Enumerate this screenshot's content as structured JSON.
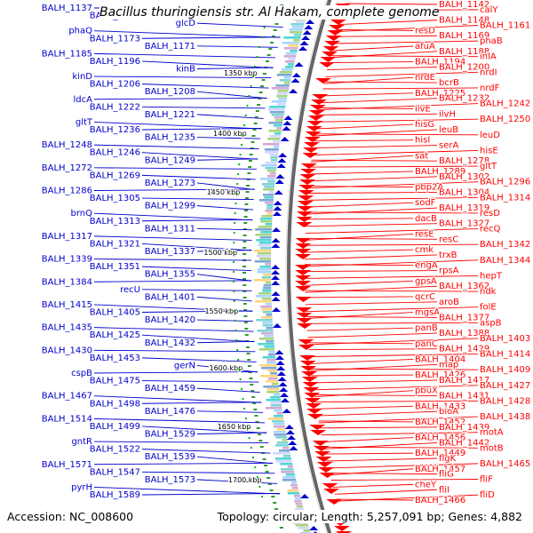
{
  "title": "Bacillus thuringiensis str. Al Hakam, complete genome",
  "footer": {
    "accession_label": "Accession:",
    "accession": "NC_008600",
    "topology_label": "Topology:",
    "topology": "circular",
    "length_label": "Length:",
    "length": "5,257,091 bp",
    "genes_label": "Genes:",
    "genes": "4,882"
  },
  "colors": {
    "forward_strand": "#0000cc",
    "reverse_strand": "#ff0000",
    "backbone": "#666666",
    "gc_skew": "#339933",
    "tick_dots": "#00aa00"
  },
  "ruler_ticks": [
    "1350 kbp",
    "1400 kbp",
    "1450 kbp",
    "1500 kbp",
    "1550 kbp",
    "1600 kbp",
    "1650 kbp",
    "1700 kbp"
  ],
  "forward_labels": [
    "BALH_1137",
    "BALH_1160",
    "glcD",
    "phaQ",
    "BALH_1173",
    "BALH_1171",
    "BALH_1185",
    "BALH_1196",
    "kinB",
    "kinD",
    "BALH_1206",
    "BALH_1208",
    "ldcA",
    "BALH_1222",
    "BALH_1221",
    "gltT",
    "BALH_1236",
    "BALH_1235",
    "BALH_1248",
    "BALH_1246",
    "BALH_1249",
    "BALH_1272",
    "BALH_1269",
    "BALH_1273",
    "BALH_1286",
    "BALH_1305",
    "BALH_1299",
    "brnQ",
    "BALH_1313",
    "BALH_1311",
    "BALH_1317",
    "BALH_1321",
    "BALH_1337",
    "BALH_1339",
    "BALH_1351",
    "BALH_1355",
    "BALH_1384",
    "recU",
    "BALH_1401",
    "BALH_1415",
    "BALH_1405",
    "BALH_1420",
    "BALH_1435",
    "BALH_1425",
    "BALH_1432",
    "BALH_1430",
    "BALH_1453",
    "gerN",
    "cspB",
    "BALH_1475",
    "BALH_1459",
    "BALH_1467",
    "BALH_1498",
    "BALH_1476",
    "BALH_1514",
    "BALH_1499",
    "BALH_1529",
    "gntR",
    "BALH_1522",
    "BALH_1539",
    "BALH_1571",
    "BALH_1547",
    "BALH_1573",
    "pyrH",
    "BALH_1589"
  ],
  "reverse_labels": [
    "BALH_1142",
    "calY",
    "potA",
    "BALH_1148",
    "BALH_1161",
    "resD",
    "BALH_1169",
    "phaB",
    "afuA",
    "BALH_1188",
    "inlA",
    "BALH_1194",
    "BALH_1200",
    "nrdI",
    "nrdE",
    "bcrB",
    "nrdF",
    "BALH_1225",
    "BALH_1232",
    "BALH_1242",
    "ilvE",
    "ilvH",
    "BALH_1250",
    "hisG",
    "leuB",
    "leuD",
    "hisI",
    "serA",
    "hisE",
    "sat",
    "BALH_1278",
    "gltT",
    "BALH_1289",
    "BALH_1302",
    "BALH_1296",
    "pbp2A",
    "BALH_1304",
    "BALH_1314",
    "sodF",
    "BALH_1319",
    "resD",
    "dacB",
    "BALH_1327",
    "recQ",
    "resE",
    "resC",
    "BALH_1342",
    "cmk",
    "trxB",
    "BALH_1344",
    "engA",
    "rpsA",
    "hepT",
    "gpsA",
    "BALH_1362",
    "ndk",
    "qcrC",
    "aroB",
    "folE",
    "mgsA",
    "BALH_1377",
    "aspB",
    "panB",
    "BALH_1388",
    "BALH_1403",
    "panC",
    "BALH_1429",
    "BALH_1414",
    "BALH_1404",
    "map",
    "BALH_1409",
    "BALH_1426",
    "BALH_1417",
    "BALH_1427",
    "pbuX",
    "BALH_1431",
    "BALH_1428",
    "BALH_1433",
    "bioA",
    "BALH_1438",
    "BALH_1452",
    "BALH_1439",
    "motA",
    "BALH_1456",
    "BALH_1442",
    "motB",
    "BALH_1449",
    "flgK",
    "BALH_1465",
    "BALH_1457",
    "fliG",
    "fliF",
    "cheY",
    "fliI",
    "fliD",
    "BALH_1466"
  ]
}
